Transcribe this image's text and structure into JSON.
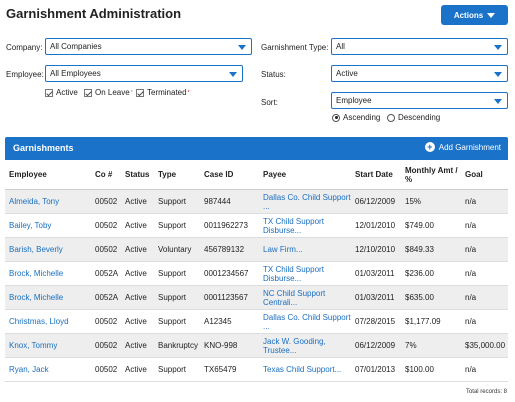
{
  "page": {
    "title": "Garnishment Administration",
    "actions_label": "Actions"
  },
  "filters": {
    "company": {
      "label": "Company:",
      "value": "All Companies"
    },
    "employee": {
      "label": "Employee:",
      "value": "All Employees"
    },
    "garnishment_type": {
      "label": "Garnishment Type:",
      "value": "All"
    },
    "status": {
      "label": "Status:",
      "value": "Active"
    },
    "sort": {
      "label": "Sort:",
      "value": "Employee"
    },
    "checkboxes": [
      {
        "label": "Active",
        "checked": true
      },
      {
        "label": "On Leave",
        "checked": true,
        "marker": "*"
      },
      {
        "label": "Terminated",
        "checked": true,
        "marker": "*"
      }
    ],
    "sort_order": [
      {
        "label": "Ascending",
        "selected": true
      },
      {
        "label": "Descending",
        "selected": false
      }
    ]
  },
  "panel": {
    "title": "Garnishments",
    "add_label": "Add Garnishment"
  },
  "table": {
    "headers": [
      "Employee",
      "Co #",
      "Status",
      "Type",
      "Case ID",
      "Payee",
      "Start Date",
      "Monthly Amt / %",
      "Goal"
    ],
    "rows": [
      {
        "employee": "Almeida, Tony",
        "co": "00502",
        "status": "Active",
        "type": "Support",
        "case_id": "987444",
        "payee1": "Dallas Co. Child Support",
        "payee2": "...",
        "start": "06/12/2009",
        "amt": "15%",
        "goal": "n/a"
      },
      {
        "employee": "Bailey, Toby",
        "co": "00502",
        "status": "Active",
        "type": "Support",
        "case_id": "0011962273",
        "payee1": "TX Child Support",
        "payee2": "Disburse...",
        "start": "12/01/2010",
        "amt": "$749.00",
        "goal": "n/a"
      },
      {
        "employee": "Barish, Beverly",
        "co": "00502",
        "status": "Active",
        "type": "Voluntary",
        "case_id": "456789132",
        "payee1": "Law Firm...",
        "payee2": "",
        "start": "12/10/2010",
        "amt": "$849.33",
        "goal": "n/a"
      },
      {
        "employee": "Brock, Michelle",
        "co": "0052A",
        "status": "Active",
        "type": "Support",
        "case_id": "0001234567",
        "payee1": "TX Child Support",
        "payee2": "Disburse...",
        "start": "01/03/2011",
        "amt": "$236.00",
        "goal": "n/a"
      },
      {
        "employee": "Brock, Michelle",
        "co": "0052A",
        "status": "Active",
        "type": "Support",
        "case_id": "0001123567",
        "payee1": "NC Child Support",
        "payee2": "Centrali...",
        "start": "01/03/2011",
        "amt": "$635.00",
        "goal": "n/a"
      },
      {
        "employee": "Christmas, Lloyd",
        "co": "00502",
        "status": "Active",
        "type": "Support",
        "case_id": "A12345",
        "payee1": "Dallas Co. Child Support",
        "payee2": "...",
        "start": "07/28/2015",
        "amt": "$1,177.09",
        "goal": "n/a"
      },
      {
        "employee": "Knox, Tommy",
        "co": "00502",
        "status": "Active",
        "type": "Bankruptcy",
        "case_id": "KNO-998",
        "payee1": "Jack W. Gooding,",
        "payee2": "Trustee...",
        "start": "06/12/2009",
        "amt": "7%",
        "goal": "$35,000.00"
      },
      {
        "employee": "Ryan, Jack",
        "co": "00502",
        "status": "Active",
        "type": "Support",
        "case_id": "TX65479",
        "payee1": "Texas Child Support...",
        "payee2": "",
        "start": "07/01/2013",
        "amt": "$100.00",
        "goal": "n/a"
      }
    ],
    "total": "Total records: 8"
  }
}
